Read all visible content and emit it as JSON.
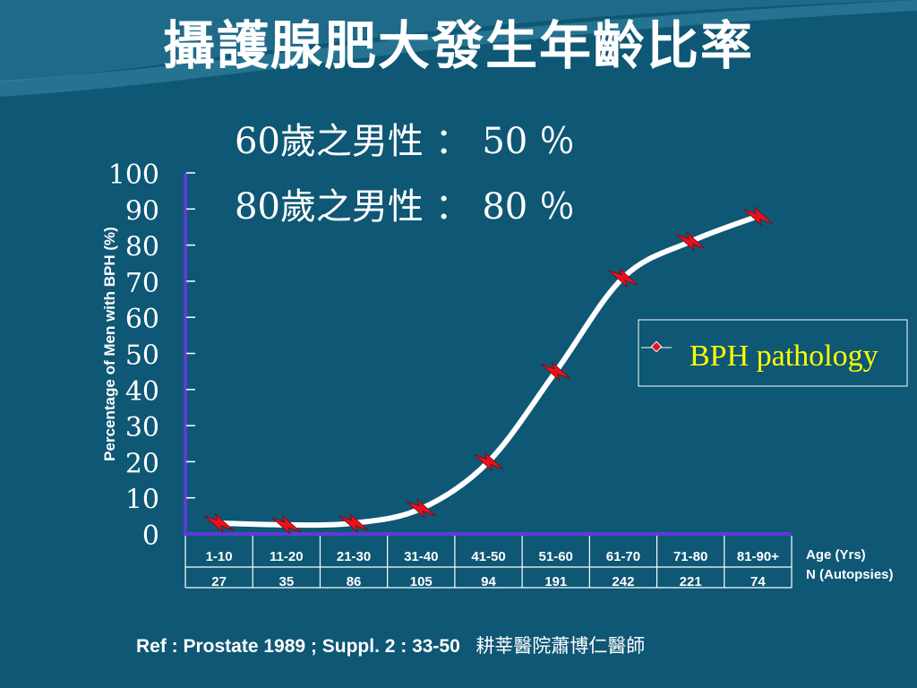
{
  "slide": {
    "title": "攝護腺肥大發生年齡比率",
    "stats": [
      "60歲之男性 ： 50 ％",
      "80歲之男性 ： 80 ％"
    ],
    "reference": "Ref : Prostate 1989 ; Suppl. 2 : 33-50",
    "author": "耕莘醫院蕭博仁醫師"
  },
  "colors": {
    "background": "#0e5775",
    "text": "#ffffff",
    "line": "#ffffff",
    "marker": "#e8121e",
    "axis": "#5a3cd6",
    "legend_text": "#ffff00"
  },
  "chart_data": {
    "type": "line",
    "categories": [
      "1-10",
      "11-20",
      "21-30",
      "31-40",
      "41-50",
      "51-60",
      "61-70",
      "71-80",
      "81-90+"
    ],
    "n_autopsies": [
      "27",
      "35",
      "86",
      "105",
      "94",
      "191",
      "242",
      "221",
      "74"
    ],
    "series": [
      {
        "name": "BPH pathology",
        "values": [
          3,
          2.5,
          3,
          7,
          20,
          45,
          71,
          81,
          88
        ]
      }
    ],
    "ylabel": "Percentage of Men with BPH (%)",
    "yticks": [
      "0",
      "10",
      "20",
      "30",
      "40",
      "50",
      "60",
      "70",
      "80",
      "90",
      "100"
    ],
    "ylim": [
      0,
      100
    ],
    "row_labels": [
      "Age (Yrs)",
      "N (Autopsies)"
    ],
    "legend_position": "right",
    "grid": false
  }
}
